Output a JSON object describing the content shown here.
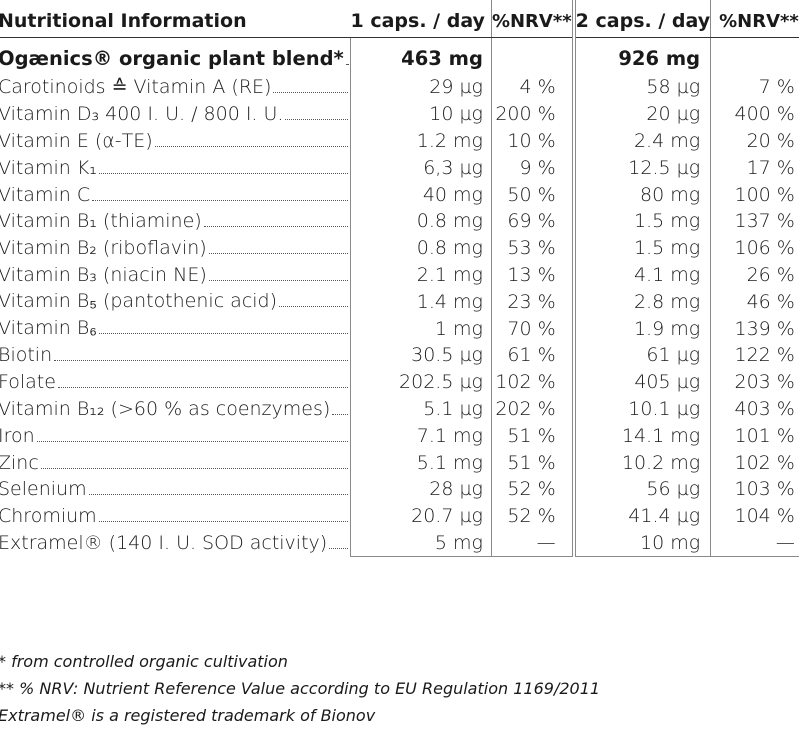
{
  "header": {
    "name": "Nutritional Information",
    "dose1": "1 caps. / day",
    "nrv1": "%NRV**",
    "dose2": "2 caps. / day",
    "nrv2": "%NRV**"
  },
  "rows": [
    {
      "name": "Ogænics® organic plant blend*",
      "v1": "463 mg",
      "n1": "",
      "v2": "926 mg",
      "n2": ""
    },
    {
      "name": "Carotinoids ≙ Vitamin A (RE)",
      "v1": "29 µg",
      "n1": "4 %",
      "v2": "58 µg",
      "n2": "7 %"
    },
    {
      "name": "Vitamin D₃ 400 I. U. / 800 I. U.",
      "v1": "10 µg",
      "n1": "200 %",
      "v2": "20 µg",
      "n2": "400 %"
    },
    {
      "name": "Vitamin E (α-TE)",
      "v1": "1.2 mg",
      "n1": "10 %",
      "v2": "2.4 mg",
      "n2": "20 %"
    },
    {
      "name": "Vitamin K₁",
      "v1": "6,3 µg",
      "n1": "9 %",
      "v2": "12.5 µg",
      "n2": "17 %"
    },
    {
      "name": "Vitamin C",
      "v1": "40 mg",
      "n1": "50 %",
      "v2": "80 mg",
      "n2": "100 %"
    },
    {
      "name": "Vitamin B₁ (thiamine)",
      "v1": "0.8 mg",
      "n1": "69 %",
      "v2": "1.5 mg",
      "n2": "137 %"
    },
    {
      "name": "Vitamin B₂ (riboflavin)",
      "v1": "0.8 mg",
      "n1": "53 %",
      "v2": "1.5 mg",
      "n2": "106 %"
    },
    {
      "name": "Vitamin B₃ (niacin NE)",
      "v1": "2.1 mg",
      "n1": "13 %",
      "v2": "4.1 mg",
      "n2": "26 %"
    },
    {
      "name": "Vitamin B₅ (pantothenic acid)",
      "v1": "1.4 mg",
      "n1": "23 %",
      "v2": "2.8 mg",
      "n2": "46 %"
    },
    {
      "name": "Vitamin B₆",
      "v1": "1 mg",
      "n1": "70 %",
      "v2": "1.9 mg",
      "n2": "139 %"
    },
    {
      "name": "Biotin",
      "v1": "30.5 µg",
      "n1": "61 %",
      "v2": "61 µg",
      "n2": "122 %"
    },
    {
      "name": "Folate",
      "v1": "202.5 µg",
      "n1": "102 %",
      "v2": "405 µg",
      "n2": "203 %"
    },
    {
      "name": "Vitamin B₁₂ (>60 % as coenzymes)",
      "v1": "5.1 µg",
      "n1": "202 %",
      "v2": "10.1 µg",
      "n2": "403 %"
    },
    {
      "name": "Iron",
      "v1": "7.1 mg",
      "n1": "51 %",
      "v2": "14.1 mg",
      "n2": "101 %"
    },
    {
      "name": "Zinc",
      "v1": "5.1 mg",
      "n1": "51 %",
      "v2": "10.2 mg",
      "n2": "102 %"
    },
    {
      "name": "Selenium",
      "v1": "28 µg",
      "n1": "52 %",
      "v2": "56 µg",
      "n2": "103 %"
    },
    {
      "name": "Chromium",
      "v1": "20.7 µg",
      "n1": "52 %",
      "v2": "41.4 µg",
      "n2": "104 %"
    },
    {
      "name": "Extramel® (140 I. U. SOD activity)",
      "v1": "5 mg",
      "n1": "—",
      "v2": "10 mg",
      "n2": "—"
    }
  ],
  "footnotes": [
    "* from controlled organic cultivation",
    "** % NRV: Nutrient Reference Value according to EU Regulation 1169/2011",
    "Extramel® is a registered trademark of Bionov"
  ]
}
